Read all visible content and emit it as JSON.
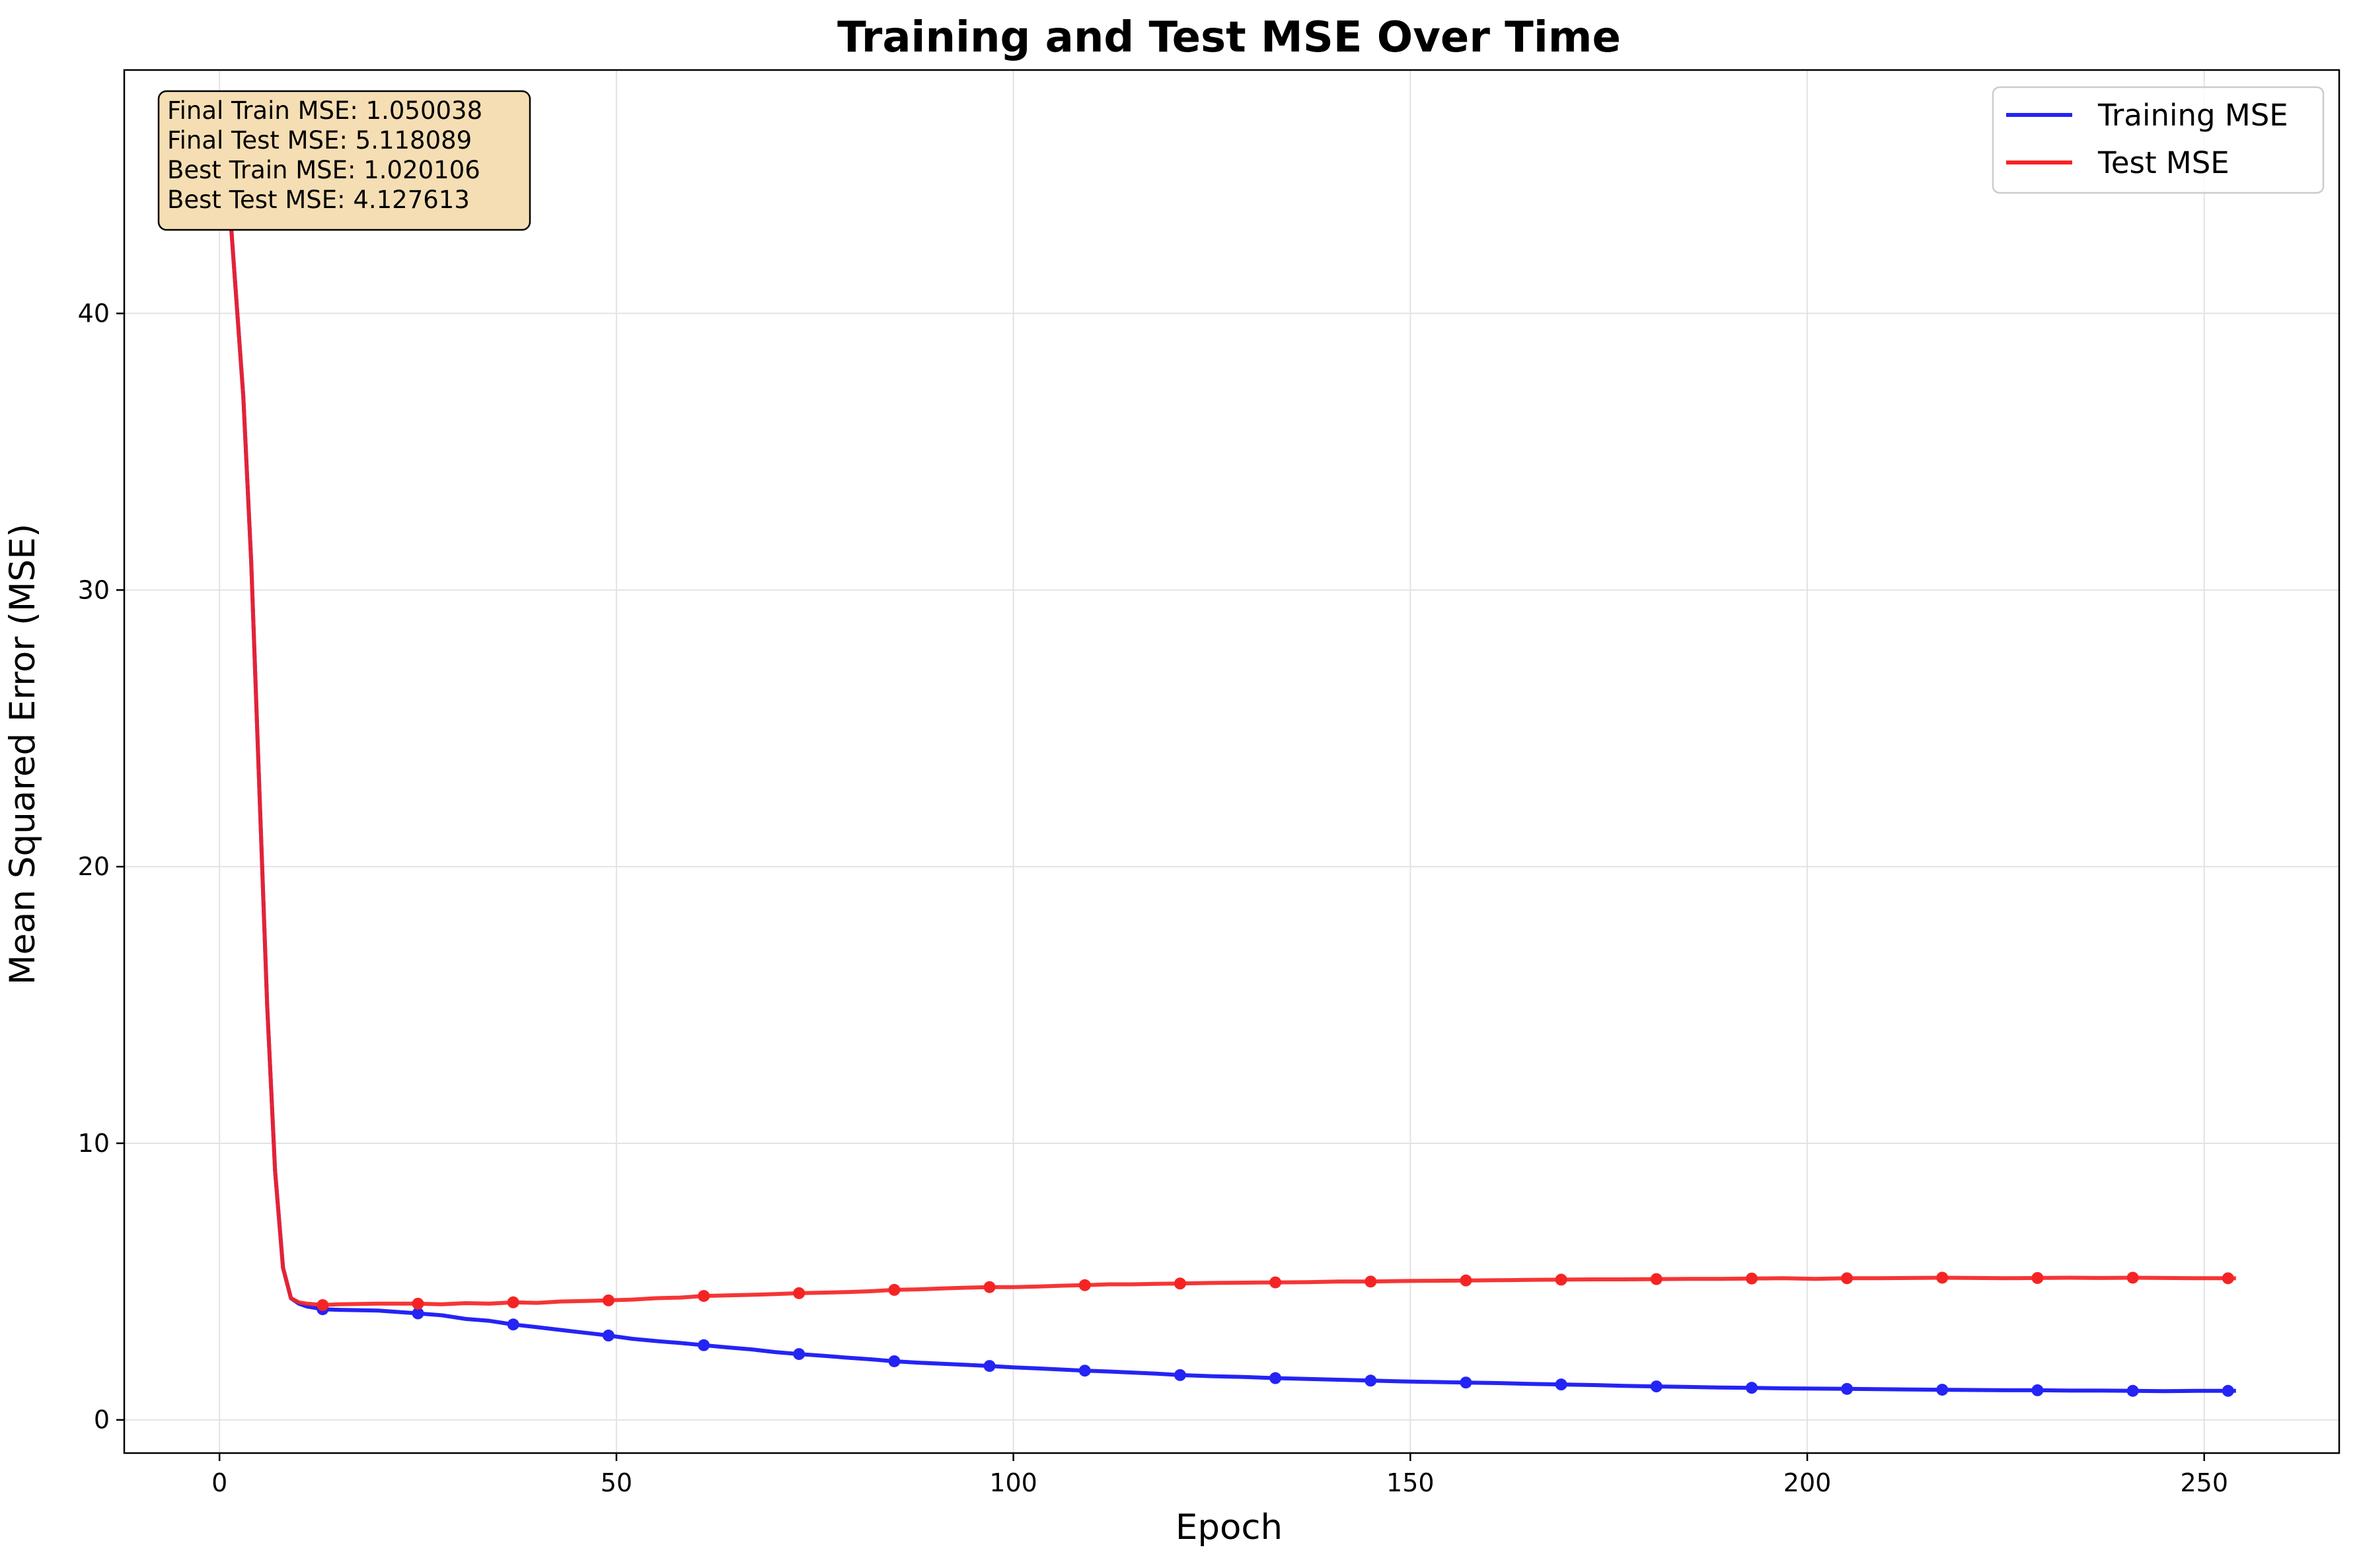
{
  "chart_data": {
    "type": "line",
    "title": "Training and Test MSE Over Time",
    "xlabel": "Epoch",
    "ylabel": "Mean Squared Error (MSE)",
    "xlim": [
      -12,
      267
    ],
    "ylim": [
      -1.2,
      48.8
    ],
    "xticks": [
      0,
      50,
      100,
      150,
      200,
      250
    ],
    "yticks": [
      0,
      10,
      20,
      30,
      40
    ],
    "grid": true,
    "legend_position": "top-right",
    "stats_box": [
      "Final Train MSE: 1.050038",
      "Final Test MSE: 5.118089",
      "Best Train MSE: 1.020106",
      "Best Test MSE: 4.127613"
    ],
    "stats_box_position": "top-left",
    "marker_epochs": [
      13,
      25,
      37,
      49,
      61,
      73,
      85,
      97,
      109,
      121,
      133,
      145,
      157,
      169,
      181,
      193,
      205,
      217,
      229,
      241,
      253
    ],
    "series": [
      {
        "name": "Training MSE",
        "color": "#2424f5",
        "x": [
          0,
          1,
          2,
          3,
          4,
          5,
          6,
          7,
          8,
          9,
          10,
          11,
          12,
          13,
          15,
          20,
          25,
          28,
          31,
          34,
          37,
          40,
          43,
          46,
          49,
          52,
          55,
          58,
          61,
          64,
          67,
          70,
          73,
          76,
          79,
          82,
          85,
          88,
          91,
          94,
          97,
          100,
          103,
          106,
          109,
          112,
          115,
          118,
          121,
          125,
          129,
          133,
          137,
          141,
          145,
          149,
          153,
          157,
          161,
          165,
          169,
          173,
          177,
          181,
          185,
          189,
          193,
          197,
          201,
          205,
          209,
          213,
          217,
          221,
          225,
          229,
          233,
          237,
          241,
          245,
          249,
          253,
          254
        ],
        "y": [
          46.8,
          45.0,
          41.0,
          37.0,
          31.0,
          23.0,
          15.0,
          9.0,
          5.5,
          4.4,
          4.2,
          4.1,
          4.05,
          4.0,
          3.98,
          3.95,
          3.85,
          3.78,
          3.65,
          3.58,
          3.45,
          3.35,
          3.25,
          3.15,
          3.05,
          2.93,
          2.85,
          2.78,
          2.7,
          2.62,
          2.55,
          2.45,
          2.38,
          2.32,
          2.25,
          2.19,
          2.12,
          2.07,
          2.03,
          1.99,
          1.95,
          1.9,
          1.86,
          1.82,
          1.78,
          1.75,
          1.71,
          1.67,
          1.62,
          1.58,
          1.55,
          1.51,
          1.48,
          1.45,
          1.42,
          1.39,
          1.37,
          1.35,
          1.33,
          1.3,
          1.28,
          1.26,
          1.23,
          1.21,
          1.19,
          1.17,
          1.16,
          1.14,
          1.13,
          1.12,
          1.11,
          1.1,
          1.09,
          1.08,
          1.07,
          1.07,
          1.06,
          1.06,
          1.05,
          1.04,
          1.05,
          1.05,
          1.05
        ]
      },
      {
        "name": "Test MSE",
        "color": "#f52424",
        "x": [
          0,
          1,
          2,
          3,
          4,
          5,
          6,
          7,
          8,
          9,
          10,
          11,
          12,
          13,
          15,
          20,
          25,
          28,
          31,
          34,
          37,
          40,
          43,
          46,
          49,
          52,
          55,
          58,
          61,
          64,
          67,
          70,
          73,
          76,
          79,
          82,
          85,
          88,
          91,
          94,
          97,
          100,
          103,
          106,
          109,
          112,
          115,
          118,
          121,
          125,
          129,
          133,
          137,
          141,
          145,
          149,
          153,
          157,
          161,
          165,
          169,
          173,
          177,
          181,
          185,
          189,
          193,
          197,
          201,
          205,
          209,
          213,
          217,
          221,
          225,
          229,
          233,
          237,
          241,
          245,
          249,
          253,
          254
        ],
        "y": [
          46.8,
          45.0,
          41.0,
          37.0,
          31.0,
          23.0,
          15.0,
          9.0,
          5.5,
          4.4,
          4.25,
          4.2,
          4.18,
          4.15,
          4.18,
          4.2,
          4.2,
          4.18,
          4.22,
          4.2,
          4.25,
          4.23,
          4.28,
          4.3,
          4.32,
          4.35,
          4.4,
          4.42,
          4.48,
          4.5,
          4.52,
          4.55,
          4.58,
          4.6,
          4.62,
          4.65,
          4.7,
          4.72,
          4.75,
          4.78,
          4.8,
          4.8,
          4.82,
          4.85,
          4.87,
          4.9,
          4.9,
          4.92,
          4.93,
          4.95,
          4.96,
          4.97,
          4.98,
          5.0,
          5.0,
          5.02,
          5.03,
          5.04,
          5.05,
          5.06,
          5.07,
          5.08,
          5.08,
          5.09,
          5.1,
          5.1,
          5.11,
          5.12,
          5.1,
          5.12,
          5.12,
          5.13,
          5.14,
          5.13,
          5.12,
          5.13,
          5.14,
          5.13,
          5.14,
          5.13,
          5.12,
          5.12,
          5.118
        ]
      }
    ]
  }
}
